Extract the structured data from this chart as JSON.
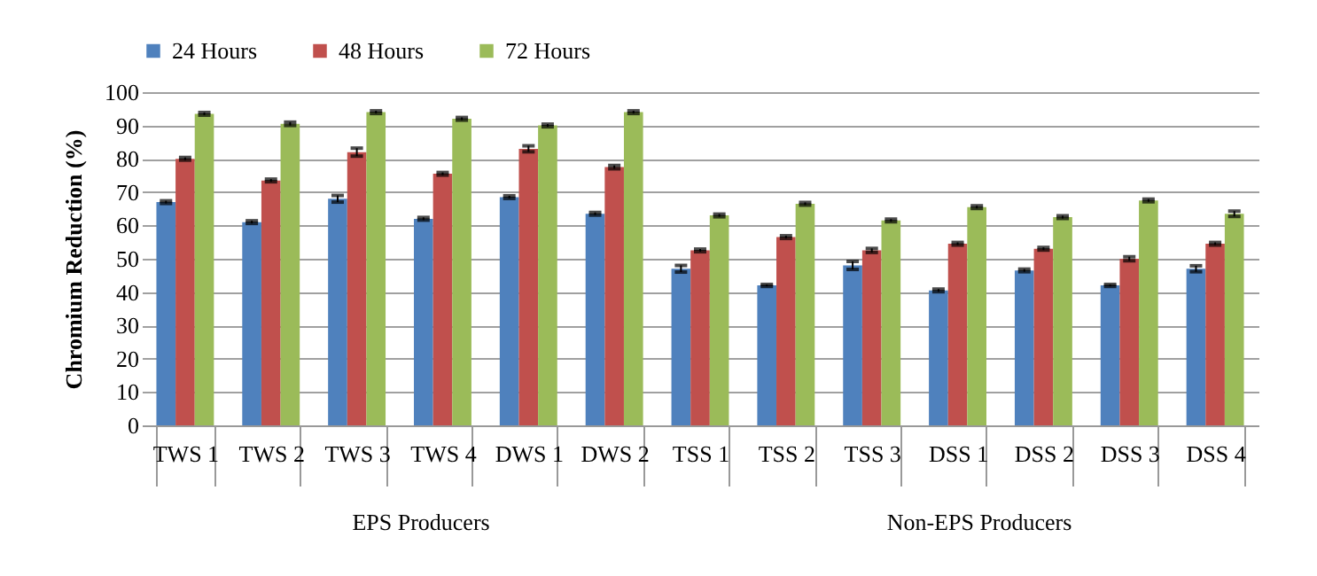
{
  "chart_data": {
    "type": "bar",
    "ylabel": "Chromium Reduction (%)",
    "categories": [
      "TWS 1",
      "TWS 2",
      "TWS 3",
      "TWS 4",
      "DWS 1",
      "DWS 2",
      "TSS 1",
      "TSS 2",
      "TSS 3",
      "DSS 1",
      "DSS 2",
      "DSS 3",
      "DSS 4"
    ],
    "series": [
      {
        "name": "24 Hours",
        "color": "#4f81bd",
        "values": [
          67,
          61,
          68,
          62,
          68.5,
          63.5,
          47,
          42,
          48,
          40.5,
          46.5,
          42,
          47
        ],
        "errors": [
          0.4,
          0.4,
          1,
          0.4,
          0.4,
          0.4,
          1,
          0.3,
          1.2,
          0.4,
          0.4,
          0.3,
          0.9
        ]
      },
      {
        "name": "48 Hours",
        "color": "#c0504d",
        "values": [
          80,
          73.5,
          82,
          75.5,
          83,
          77.5,
          52.5,
          56.5,
          52.5,
          54.5,
          53,
          50,
          54.5
        ],
        "errors": [
          0.4,
          0.4,
          1.2,
          0.4,
          0.9,
          0.5,
          0.4,
          0.4,
          0.6,
          0.4,
          0.4,
          0.6,
          0.4
        ]
      },
      {
        "name": "72 Hours",
        "color": "#9bbb59",
        "values": [
          93.5,
          90.5,
          94,
          92,
          90,
          94,
          63,
          66.5,
          61.5,
          65.5,
          62.5,
          67.5,
          63.5
        ],
        "errors": [
          0.4,
          0.5,
          0.4,
          0.4,
          0.4,
          0.4,
          0.4,
          0.4,
          0.4,
          0.4,
          0.4,
          0.4,
          0.8
        ]
      }
    ],
    "ylim": [
      0,
      100
    ],
    "yticks": [
      0,
      10,
      20,
      30,
      40,
      50,
      60,
      70,
      80,
      90,
      100
    ],
    "grid": "y",
    "legend": "top",
    "annotations": [
      "EPS Producers",
      "Non-EPS Producers"
    ]
  }
}
